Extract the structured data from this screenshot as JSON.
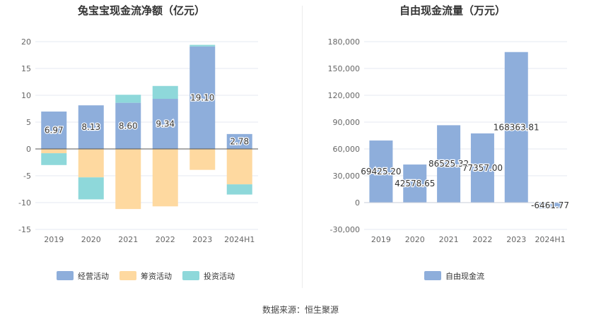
{
  "charts": [
    {
      "type": "bar",
      "stacked": true,
      "title": "兔宝宝现金流净额（亿元）",
      "categories": [
        "2019",
        "2020",
        "2021",
        "2022",
        "2023",
        "2024H1"
      ],
      "y_ticks": [
        "20",
        "15",
        "10",
        "5",
        "0",
        "-5",
        "-10",
        "-15"
      ],
      "ylim": [
        -15,
        20
      ],
      "series": [
        {
          "name": "经营活动",
          "color": "#8eaedb",
          "values": [
            6.97,
            8.13,
            8.6,
            9.34,
            19.1,
            2.78
          ],
          "labels": [
            "6.97",
            "8.13",
            "8.60",
            "9.34",
            "19.10",
            "2.78"
          ]
        },
        {
          "name": "筹资活动",
          "color": "#fed9a0",
          "values": [
            -0.8,
            -5.3,
            -11.2,
            -10.7,
            -3.9,
            -6.6
          ]
        },
        {
          "name": "投资活动",
          "color": "#8ed8da",
          "values": [
            -2.2,
            -4.1,
            1.5,
            2.4,
            0.3,
            -1.9
          ]
        }
      ],
      "legend_position": "bottom"
    },
    {
      "type": "bar",
      "title": "自由现金流量（万元）",
      "categories": [
        "2019",
        "2020",
        "2021",
        "2022",
        "2023",
        "2024H1"
      ],
      "y_ticks": [
        "180,000",
        "150,000",
        "120,000",
        "90,000",
        "60,000",
        "30,000",
        "0",
        "-30,000"
      ],
      "ylim": [
        -30000,
        180000
      ],
      "series": [
        {
          "name": "自由现金流",
          "color": "#8eaedb",
          "values": [
            69425.2,
            42578.65,
            86525.32,
            77357.0,
            168363.81,
            -6461.77
          ],
          "labels": [
            "69425.20",
            "42578.65",
            "86525.32",
            "77357.00",
            "168363.81",
            "-6461.77"
          ]
        }
      ],
      "legend_position": "bottom"
    }
  ],
  "source_text": "数据来源：恒生聚源"
}
